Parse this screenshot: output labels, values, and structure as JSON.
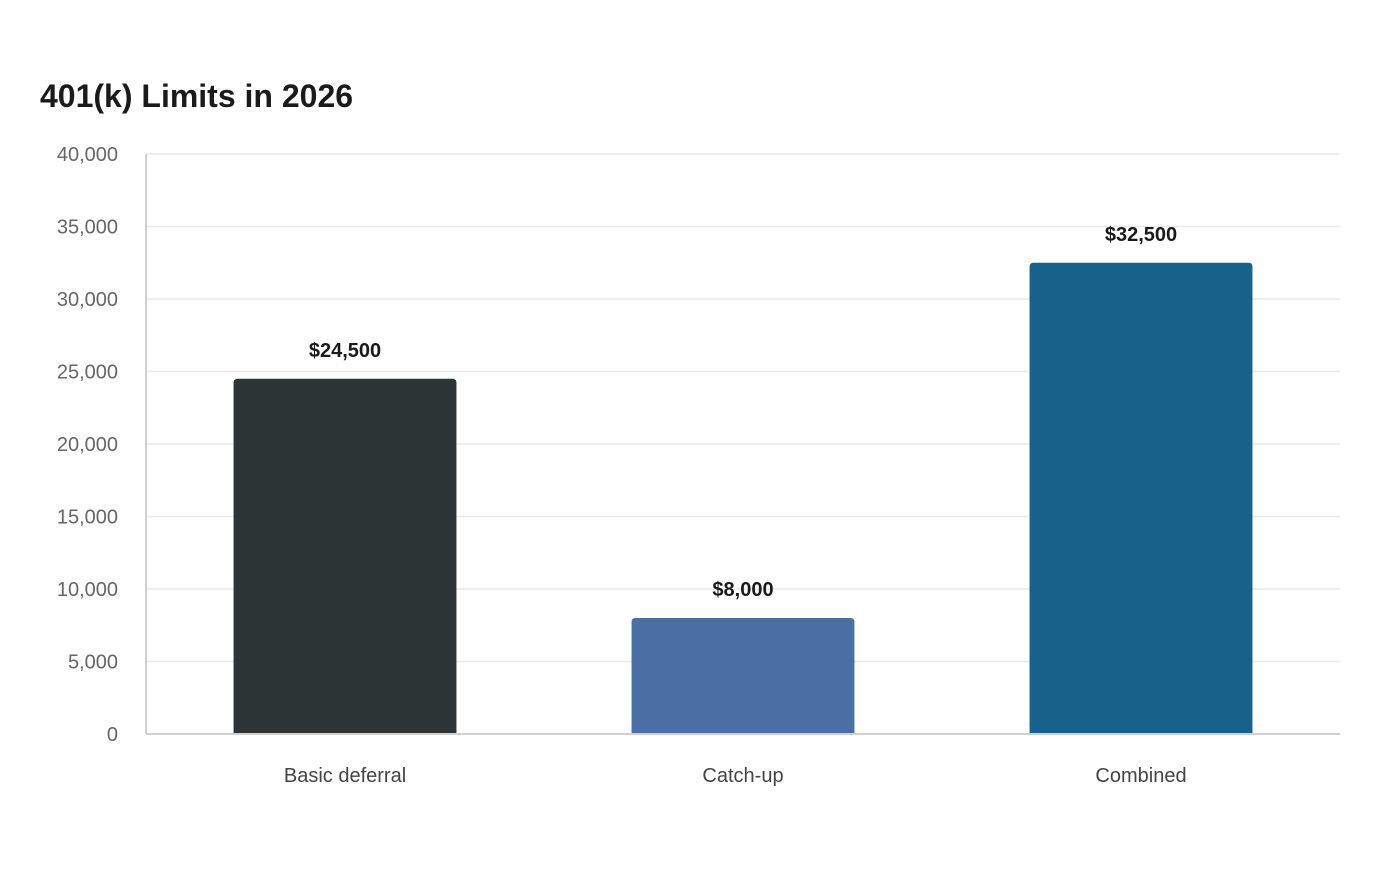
{
  "chart_data": {
    "type": "bar",
    "title": "401(k) Limits in 2026",
    "categories": [
      "Basic deferral",
      "Catch-up",
      "Combined"
    ],
    "values": [
      24500,
      8000,
      32500
    ],
    "data_labels": [
      "$24,500",
      "$8,000",
      "$32,500"
    ],
    "bar_colors": [
      "#2d3436",
      "#4a6fa5",
      "#17628a"
    ],
    "ylim": [
      0,
      40000
    ],
    "y_ticks": [
      0,
      5000,
      10000,
      15000,
      20000,
      25000,
      30000,
      35000,
      40000
    ],
    "y_tick_labels": [
      "0",
      "5,000",
      "10,000",
      "15,000",
      "20,000",
      "25,000",
      "30,000",
      "35,000",
      "40,000"
    ],
    "xlabel": "",
    "ylabel": "",
    "grid": true,
    "legend": "none"
  }
}
